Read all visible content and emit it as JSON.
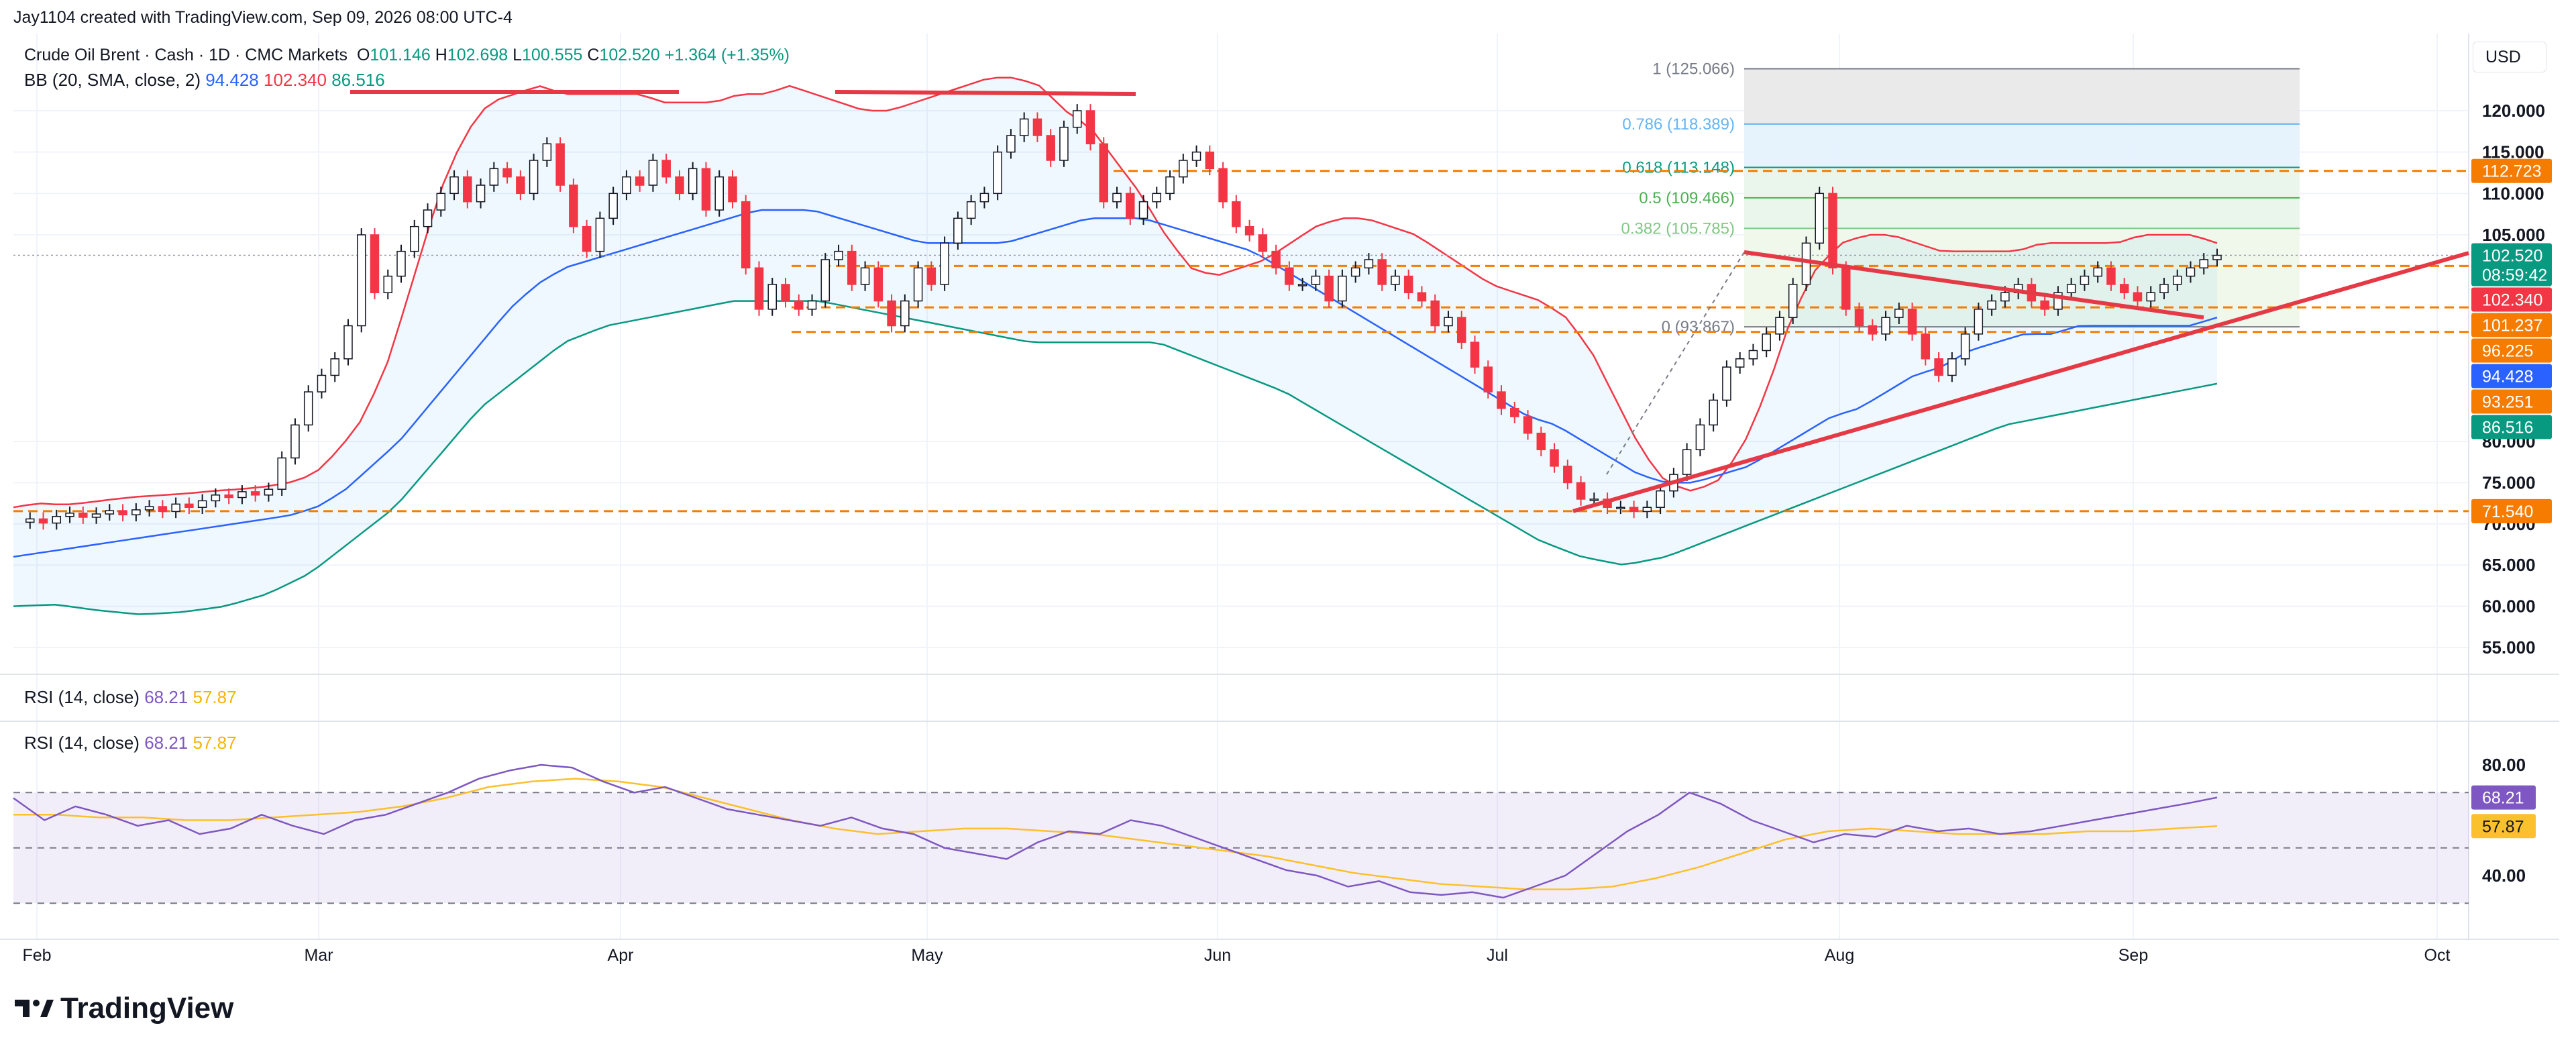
{
  "header": {
    "created_by": "Jay1104 created with TradingView.com, Sep 09, 2026 08:00 UTC-4",
    "symbol": "Crude Oil Brent · Cash · 1D · CMC Markets",
    "ohlc": {
      "o_label": "O",
      "o": "101.146",
      "h_label": "H",
      "h": "102.698",
      "l_label": "L",
      "l": "100.555",
      "c_label": "C",
      "c": "102.520",
      "change": "+1.364 (+1.35%)"
    },
    "bb_label": "BB (20, SMA, close, 2)",
    "bb_values": {
      "basis": "94.428",
      "upper": "102.340",
      "lower": "86.516"
    },
    "rsi_label": "RSI (14, close)",
    "rsi_values": {
      "rsi": "68.21",
      "ma": "57.87"
    }
  },
  "currency": "USD",
  "brand": "TradingView",
  "colors": {
    "up": "#089981",
    "down": "#f23645",
    "bb_basis": "#2962ff",
    "bb_upper": "#f23645",
    "bb_lower": "#089981",
    "level": "#f57c00",
    "trend": "#e53945",
    "rsi": "#7e57c2",
    "rsi_ma": "#fbc02d"
  },
  "chart_data": {
    "type": "candlestick",
    "price_axis": {
      "ticks": [
        "120.000",
        "115.000",
        "110.000",
        "105.000",
        "80.000",
        "75.000",
        "70.000",
        "65.000",
        "60.000",
        "55.000"
      ]
    },
    "price_tags": [
      {
        "label": "112.723",
        "value": 112.723,
        "color": "#f57c00"
      },
      {
        "label": "102.520",
        "value": 102.52,
        "color": "#089981",
        "sub": "08:59:42"
      },
      {
        "label": "102.340",
        "value": 102.34,
        "color": "#f23645"
      },
      {
        "label": "101.237",
        "value": 101.237,
        "color": "#f57c00"
      },
      {
        "label": "96.225",
        "value": 96.225,
        "color": "#f57c00"
      },
      {
        "label": "94.428",
        "value": 94.428,
        "color": "#2962ff"
      },
      {
        "label": "93.251",
        "value": 93.251,
        "color": "#f57c00"
      },
      {
        "label": "86.516",
        "value": 86.516,
        "color": "#089981"
      },
      {
        "label": "71.540",
        "value": 71.54,
        "color": "#f57c00"
      }
    ],
    "horizontal_levels": [
      112.723,
      101.237,
      96.225,
      93.251,
      71.54
    ],
    "fibonacci": [
      {
        "label": "1 (125.066)",
        "value": 125.066,
        "color": "#787b86"
      },
      {
        "label": "0.786 (118.389)",
        "value": 118.389,
        "color": "#64b5f6"
      },
      {
        "label": "0.618 (113.148)",
        "value": 113.148,
        "color": "#089981"
      },
      {
        "label": "0.5 (109.466)",
        "value": 109.466,
        "color": "#4caf50"
      },
      {
        "label": "0.382 (105.785)",
        "value": 105.785,
        "color": "#81c784"
      },
      {
        "label": "0 (93.867)",
        "value": 93.867,
        "color": "#787b86"
      }
    ],
    "time_axis": [
      "Feb",
      "Mar",
      "Apr",
      "May",
      "Jun",
      "Jul",
      "Aug",
      "Sep",
      "Oct"
    ],
    "closes": [
      70.2,
      70.6,
      70.1,
      70.9,
      71.3,
      70.8,
      71.2,
      71.6,
      71.1,
      71.7,
      72.1,
      71.5,
      72.4,
      72.0,
      72.8,
      73.5,
      73.2,
      73.9,
      73.5,
      74.2,
      78,
      82,
      86,
      88,
      90,
      94,
      105,
      98,
      100,
      103,
      106,
      108,
      110,
      112,
      109,
      111,
      113,
      112,
      110,
      114,
      116,
      111,
      106,
      103,
      107,
      110,
      112,
      111,
      114,
      112,
      110,
      113,
      108,
      112,
      109,
      101,
      96,
      99,
      97,
      96,
      97,
      102,
      103,
      99,
      101,
      97,
      94,
      97,
      101,
      99,
      104,
      107,
      109,
      110,
      115,
      117,
      119,
      117,
      114,
      118,
      120,
      116,
      109,
      110,
      107,
      109,
      110,
      112,
      114,
      115,
      113,
      109,
      106,
      105,
      103,
      101,
      99,
      99,
      100,
      97,
      100,
      101,
      102,
      99,
      100,
      98,
      97,
      94,
      95,
      92,
      89,
      86,
      84,
      83,
      81,
      79,
      77,
      75,
      73,
      73,
      72,
      72,
      71.5,
      72,
      74,
      76,
      79,
      82,
      85,
      89,
      90,
      91,
      93,
      95,
      99,
      104,
      110,
      101,
      96,
      94,
      93,
      95,
      96,
      93,
      90,
      88,
      90,
      93,
      96,
      97,
      98,
      99,
      97,
      96,
      98,
      99,
      100,
      101,
      99,
      98,
      97,
      98,
      99,
      100,
      101,
      102,
      102.52
    ],
    "bb_upper": [
      72,
      72.5,
      72.3,
      72.6,
      73,
      73.3,
      73.5,
      73.7,
      74,
      74.2,
      74.5,
      75,
      76,
      79,
      83,
      90,
      100,
      110,
      117,
      121,
      122,
      123,
      122,
      122,
      122,
      122,
      121,
      121,
      121,
      122,
      122,
      123,
      122,
      121,
      120,
      120,
      121,
      122,
      123,
      124,
      124,
      123,
      120,
      118,
      114,
      110,
      105,
      101,
      100,
      101,
      102,
      104,
      106,
      107,
      107,
      106,
      105,
      103,
      101,
      99,
      98,
      97,
      95,
      91,
      85,
      79,
      75,
      74,
      75,
      79,
      86,
      95,
      101,
      104,
      105,
      105,
      104,
      103,
      103,
      103,
      103,
      104,
      104,
      104,
      104,
      105,
      105,
      105,
      104
    ],
    "bb_basis": [
      66,
      66.5,
      67,
      67.5,
      68,
      68.5,
      69,
      69.5,
      70,
      70.5,
      71,
      72,
      74,
      77,
      80,
      84,
      88,
      92,
      96,
      99,
      101,
      102,
      103,
      104,
      105,
      106,
      107,
      108,
      108,
      108,
      107,
      106,
      105,
      104,
      104,
      104,
      104,
      105,
      106,
      107,
      107,
      107,
      106,
      105,
      104,
      103,
      101,
      99,
      97,
      95,
      93,
      91,
      89,
      87,
      85,
      83,
      82,
      80,
      78,
      76,
      75,
      75,
      76,
      77,
      79,
      81,
      83,
      84,
      86,
      88,
      89,
      91,
      92,
      93,
      93,
      94,
      94,
      94,
      94,
      94,
      95
    ],
    "bb_lower": [
      60,
      60.2,
      59.5,
      59,
      59.3,
      60,
      61.5,
      64,
      68,
      72,
      78,
      84,
      88,
      92,
      94,
      95,
      96,
      97,
      97,
      97,
      96,
      95,
      94,
      93,
      92,
      92,
      92,
      92,
      90,
      88,
      86,
      83,
      80,
      77,
      74,
      71,
      68,
      66,
      65,
      66,
      68,
      70,
      72,
      74,
      76,
      78,
      80,
      82,
      83,
      84,
      85,
      86,
      87
    ],
    "rsi_series": [
      68,
      60,
      65,
      62,
      58,
      60,
      55,
      57,
      62,
      58,
      55,
      60,
      62,
      66,
      70,
      75,
      78,
      80,
      79,
      74,
      70,
      72,
      68,
      64,
      62,
      60,
      58,
      61,
      57,
      55,
      50,
      48,
      46,
      52,
      56,
      55,
      60,
      58,
      54,
      50,
      46,
      42,
      40,
      36,
      38,
      34,
      33,
      34,
      32,
      36,
      40,
      48,
      56,
      62,
      70,
      66,
      60,
      56,
      52,
      55,
      54,
      58,
      56,
      57,
      55,
      56,
      58,
      60,
      62,
      64,
      66,
      68.21
    ],
    "rsi_ma_series": [
      62,
      62,
      61,
      61,
      60,
      60,
      61,
      62,
      63,
      65,
      68,
      72,
      74,
      75,
      74,
      72,
      68,
      64,
      60,
      57,
      55,
      56,
      57,
      57,
      56,
      55,
      53,
      51,
      49,
      47,
      44,
      41,
      39,
      37,
      36,
      35,
      35,
      36,
      39,
      43,
      48,
      53,
      56,
      57,
      56,
      55,
      55,
      55,
      56,
      56,
      57,
      57.87
    ],
    "rsi_axis": [
      "80.00",
      "40.00"
    ]
  }
}
